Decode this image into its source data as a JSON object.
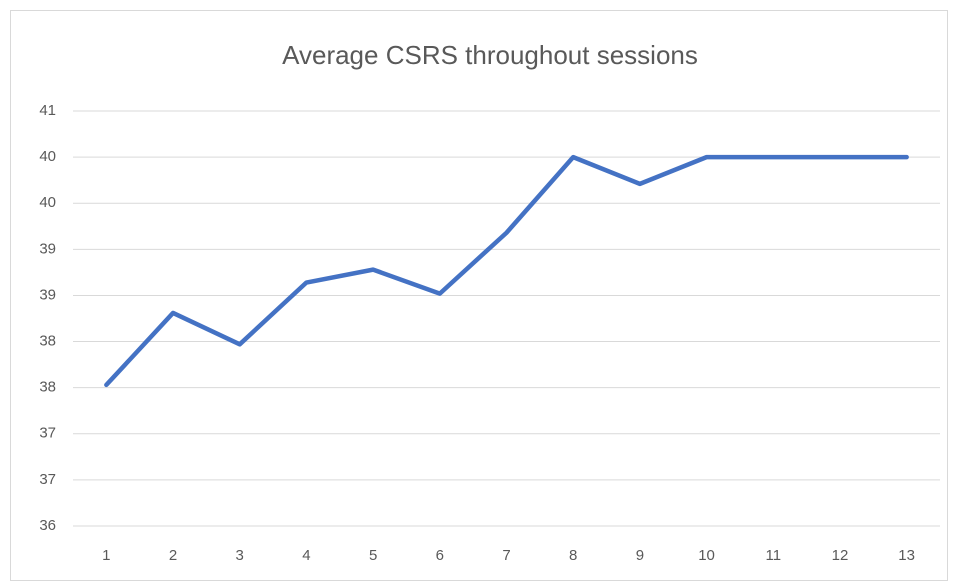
{
  "chart_data": {
    "type": "line",
    "title": "Average CSRS throughout sessions",
    "categories": [
      1,
      2,
      3,
      4,
      5,
      6,
      7,
      8,
      9,
      10,
      11,
      12,
      13
    ],
    "series": [
      {
        "name": "Average CSRS",
        "color": "#4472c4",
        "values": [
          37.53,
          38.31,
          37.97,
          38.64,
          38.78,
          38.52,
          39.18,
          40.0,
          39.71,
          40.0,
          40.0,
          40.0,
          40.0
        ]
      }
    ],
    "ylim": [
      36,
      40.5
    ],
    "yticks": [
      36,
      {
        "value": 36.5,
        "label": "37"
      },
      37,
      {
        "value": 37.5,
        "label": "38"
      },
      38,
      {
        "value": 38.5,
        "label": "39"
      },
      39,
      {
        "value": 39.5,
        "label": "40"
      },
      40,
      {
        "value": 40.5,
        "label": "41"
      }
    ],
    "grid": true
  }
}
